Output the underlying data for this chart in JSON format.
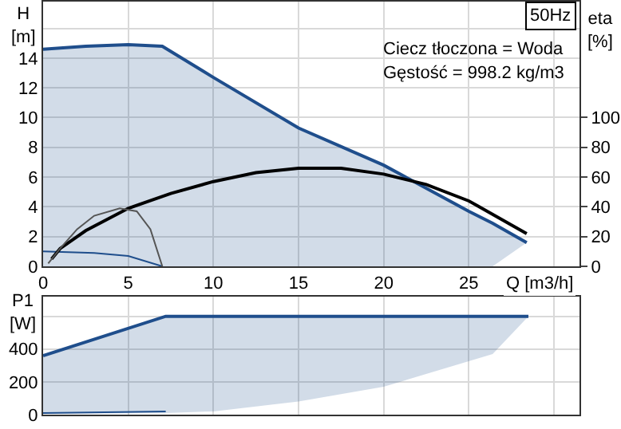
{
  "chart_data": [
    {
      "type": "line",
      "title": "50Hz",
      "xlabel": "Q [m3/h]",
      "ylabel": "H\n[m]",
      "y2label": "eta\n[%]",
      "annotations": [
        "Ciecz tłoczona = Woda",
        "Gęstość = 998.2 kg/m3"
      ],
      "xlim": [
        0,
        31.5
      ],
      "xticks": [
        0,
        5,
        10,
        15,
        20,
        25,
        {
          "value": 30,
          "label": null
        }
      ],
      "ylim": [
        0,
        17.8
      ],
      "yticks": [
        0,
        2,
        4,
        6,
        8,
        10,
        12,
        14,
        {
          "value": 16,
          "label": null
        }
      ],
      "y2lim": [
        0,
        178
      ],
      "y2ticks": [
        0,
        20,
        40,
        60,
        80,
        100
      ],
      "grid": true,
      "legend": false,
      "marker": "none",
      "line_style": "solid",
      "series": [
        {
          "color": "#1f4e8c",
          "x": [
            0,
            2.5,
            5,
            7,
            10,
            15,
            20,
            25,
            26.4,
            28.4
          ],
          "values": [
            14.6,
            14.8,
            14.9,
            14.8,
            12.7,
            9.3,
            6.8,
            3.7,
            2.9,
            1.6
          ],
          "lower": [
            0,
            0,
            0,
            0,
            0,
            0,
            0,
            0,
            0,
            1.6
          ],
          "upper": [
            14.6,
            14.8,
            14.9,
            14.8,
            12.7,
            9.3,
            6.8,
            3.7,
            2.9,
            1.6
          ]
        },
        {
          "color": "#1f4e8c",
          "x": [
            0,
            3,
            5,
            7
          ],
          "values": [
            1.0,
            0.9,
            0.7,
            0
          ]
        },
        {
          "color": "#000000",
          "axis": "y2",
          "x": [
            0.5,
            1,
            2.5,
            5,
            7.5,
            10,
            12.5,
            15,
            17.5,
            20,
            22.5,
            25,
            28.4
          ],
          "values": [
            5,
            12,
            24,
            39,
            49,
            57,
            63,
            66,
            66,
            62,
            55,
            44,
            22
          ]
        },
        {
          "color": "#555555",
          "axis": "y2",
          "x": [
            0.3,
            1,
            2,
            3,
            4.5,
            5.5,
            6.3,
            7
          ],
          "values": [
            2,
            12,
            25,
            34,
            39,
            37,
            25,
            0
          ]
        }
      ]
    },
    {
      "type": "line",
      "ylabel": "P1\n[W]",
      "xlim": [
        0,
        31.5
      ],
      "xticks": [
        0,
        5,
        10,
        15,
        20,
        25,
        30
      ],
      "ylim": [
        0,
        720
      ],
      "yticks": [
        0,
        200,
        400,
        {
          "value": 600,
          "label": null
        }
      ],
      "tick_labels": "y",
      "grid": true,
      "legend": false,
      "marker": "none",
      "line_style": "solid",
      "series": [
        {
          "color": "#1f4e8c",
          "x": [
            0,
            7.2,
            10,
            15,
            20,
            26.4,
            28.5
          ],
          "values": [
            360,
            600,
            600,
            600,
            600,
            600,
            600
          ],
          "lower": [
            5,
            10,
            20,
            80,
            170,
            370,
            600
          ],
          "upper": [
            360,
            600,
            600,
            600,
            600,
            600,
            600
          ]
        },
        {
          "color": "#1f4e8c",
          "x": [
            0,
            7.2
          ],
          "values": [
            10,
            20
          ]
        }
      ]
    }
  ]
}
